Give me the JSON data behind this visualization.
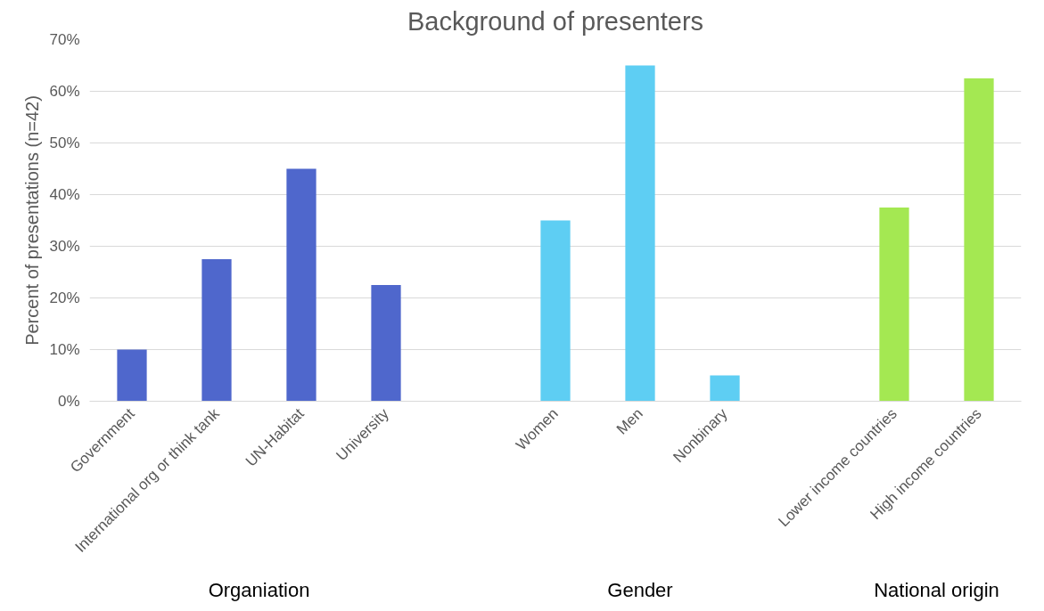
{
  "chart_data": {
    "type": "bar",
    "title": "Background of presenters",
    "ylabel": "Percent of presentations (n=42)",
    "categories": [
      "Government",
      "International org or think tank",
      "UN-Habitat",
      "University",
      null,
      "Women",
      "Men",
      "Nonbinary",
      null,
      "Lower income countries",
      "High income countries"
    ],
    "values": [
      10,
      27.5,
      45,
      22.5,
      null,
      35,
      65,
      5,
      null,
      37.5,
      62.5
    ],
    "colors": [
      "#4f67cc",
      "#4f67cc",
      "#4f67cc",
      "#4f67cc",
      null,
      "#5ecef3",
      "#5ecef3",
      "#5ecef3",
      null,
      "#a4e852",
      "#a4e852"
    ],
    "ylim": [
      0,
      70
    ],
    "yticks": [
      {
        "value": 0,
        "label": "0%"
      },
      {
        "value": 10,
        "label": "10%"
      },
      {
        "value": 20,
        "label": "20%"
      },
      {
        "value": 30,
        "label": "30%"
      },
      {
        "value": 40,
        "label": "40%"
      },
      {
        "value": 50,
        "label": "50%"
      },
      {
        "value": 60,
        "label": "60%"
      },
      {
        "value": 70,
        "label": "70%"
      }
    ],
    "grid": "y",
    "annotations": [
      "Organiation",
      "Gender",
      "National origin"
    ]
  }
}
